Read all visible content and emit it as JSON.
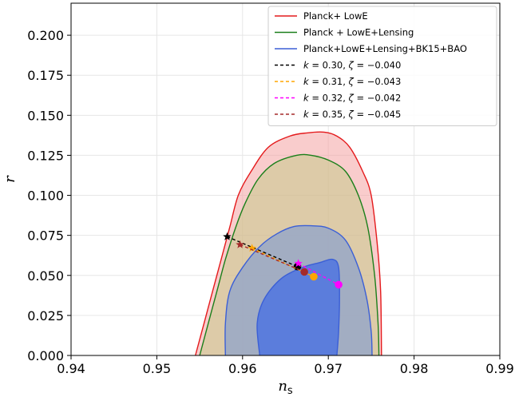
{
  "chart_data": {
    "type": "scatter",
    "xlabel": "n",
    "xlabel_sub": "s",
    "ylabel": "r",
    "xlim": [
      0.94,
      0.99
    ],
    "ylim": [
      0.0,
      0.22
    ],
    "xticks": [
      0.94,
      0.95,
      0.96,
      0.97,
      0.98,
      0.99
    ],
    "xtick_labels": [
      "0.94",
      "0.95",
      "0.96",
      "0.97",
      "0.98",
      "0.99"
    ],
    "yticks": [
      0.0,
      0.025,
      0.05,
      0.075,
      0.1,
      0.125,
      0.15,
      0.175,
      0.2
    ],
    "ytick_labels": [
      "0.000",
      "0.025",
      "0.050",
      "0.075",
      "0.100",
      "0.125",
      "0.150",
      "0.175",
      "0.200"
    ],
    "grid": true,
    "legend_position": "top-right",
    "contours": [
      {
        "name": "Planck+ LowE",
        "line_color": "#e41a1c",
        "fill_color": "#f4a3a3",
        "fill_opacity": 0.55,
        "points": [
          [
            0.9545,
            0.0
          ],
          [
            0.9555,
            0.02
          ],
          [
            0.9565,
            0.04
          ],
          [
            0.9575,
            0.06
          ],
          [
            0.9585,
            0.08
          ],
          [
            0.9595,
            0.1
          ],
          [
            0.961,
            0.115
          ],
          [
            0.963,
            0.13
          ],
          [
            0.9655,
            0.137
          ],
          [
            0.9675,
            0.139
          ],
          [
            0.9695,
            0.1395
          ],
          [
            0.971,
            0.137
          ],
          [
            0.9725,
            0.13
          ],
          [
            0.974,
            0.115
          ],
          [
            0.975,
            0.1
          ],
          [
            0.9757,
            0.07
          ],
          [
            0.9761,
            0.04
          ],
          [
            0.9762,
            0.0
          ]
        ]
      },
      {
        "name": "Planck + LowE+Lensing",
        "line_color": "#1a7f1a",
        "fill_color": "#c9c990",
        "fill_opacity": 0.6,
        "points": [
          [
            0.955,
            0.0
          ],
          [
            0.956,
            0.02
          ],
          [
            0.957,
            0.04
          ],
          [
            0.958,
            0.06
          ],
          [
            0.9592,
            0.08
          ],
          [
            0.9603,
            0.095
          ],
          [
            0.9618,
            0.11
          ],
          [
            0.9637,
            0.12
          ],
          [
            0.9663,
            0.125
          ],
          [
            0.968,
            0.125
          ],
          [
            0.97,
            0.122
          ],
          [
            0.972,
            0.115
          ],
          [
            0.9735,
            0.1
          ],
          [
            0.9746,
            0.08
          ],
          [
            0.9754,
            0.05
          ],
          [
            0.9758,
            0.02
          ],
          [
            0.9759,
            0.0
          ]
        ]
      },
      {
        "name": "Planck+LowE+Lensing+BK15+BAO",
        "line_color": "#3b5fd6",
        "fill_color": "#93a5c8",
        "fill_opacity": 0.8,
        "points": [
          [
            0.958,
            0.0
          ],
          [
            0.958,
            0.02
          ],
          [
            0.9585,
            0.04
          ],
          [
            0.96,
            0.055
          ],
          [
            0.962,
            0.068
          ],
          [
            0.964,
            0.076
          ],
          [
            0.966,
            0.0805
          ],
          [
            0.968,
            0.081
          ],
          [
            0.97,
            0.0795
          ],
          [
            0.972,
            0.072
          ],
          [
            0.9735,
            0.055
          ],
          [
            0.9745,
            0.035
          ],
          [
            0.975,
            0.015
          ],
          [
            0.9751,
            0.0
          ]
        ]
      },
      {
        "name": "",
        "line_color": "#3b5fd6",
        "fill_color": "#4f74e0",
        "fill_opacity": 0.85,
        "points": [
          [
            0.962,
            0.0
          ],
          [
            0.9617,
            0.02
          ],
          [
            0.9625,
            0.035
          ],
          [
            0.9645,
            0.048
          ],
          [
            0.967,
            0.055
          ],
          [
            0.969,
            0.058
          ],
          [
            0.9705,
            0.06
          ],
          [
            0.9712,
            0.055
          ],
          [
            0.9713,
            0.035
          ],
          [
            0.9712,
            0.015
          ],
          [
            0.971,
            0.0
          ]
        ]
      }
    ],
    "series": [
      {
        "name": "k = 0.30, ζ = −0.040",
        "label_k": "k",
        "label_k_value": " = 0.30, ",
        "label_z": "ζ",
        "label_z_value": " = −0.040",
        "color": "#000000",
        "x": [
          0.9582,
          0.9664
        ],
        "y": [
          0.0742,
          0.0555
        ],
        "start_marker": "star",
        "end_marker": "circle"
      },
      {
        "name": "k = 0.31, ζ = −0.043",
        "label_k": "k",
        "label_k_value": " = 0.31, ",
        "label_z": "ζ",
        "label_z_value": " = −0.043",
        "color": "#ffa500",
        "x": [
          0.9611,
          0.9683
        ],
        "y": [
          0.067,
          0.0492
        ],
        "start_marker": "star",
        "end_marker": "circle"
      },
      {
        "name": "k = 0.32, ζ = −0.042",
        "label_k": "k",
        "label_k_value": " = 0.32, ",
        "label_z": "ζ",
        "label_z_value": " = −0.042",
        "color": "#ff00ff",
        "x": [
          0.9665,
          0.9712
        ],
        "y": [
          0.0575,
          0.0442
        ],
        "start_marker": "star",
        "end_marker": "circle"
      },
      {
        "name": "k = 0.35, ζ = −0.045",
        "label_k": "k",
        "label_k_value": " = 0.35, ",
        "label_z": "ζ",
        "label_z_value": " = −0.045",
        "color": "#a52a2a",
        "x": [
          0.9597,
          0.9672
        ],
        "y": [
          0.0692,
          0.0522
        ],
        "start_marker": "star",
        "end_marker": "circle"
      }
    ],
    "legend": [
      {
        "label": "Planck+ LowE",
        "color": "#e41a1c",
        "style": "solid"
      },
      {
        "label": "Planck + LowE+Lensing",
        "color": "#1a7f1a",
        "style": "solid"
      },
      {
        "label": "Planck+LowE+Lensing+BK15+BAO",
        "color": "#3b5fd6",
        "style": "solid"
      }
    ]
  }
}
